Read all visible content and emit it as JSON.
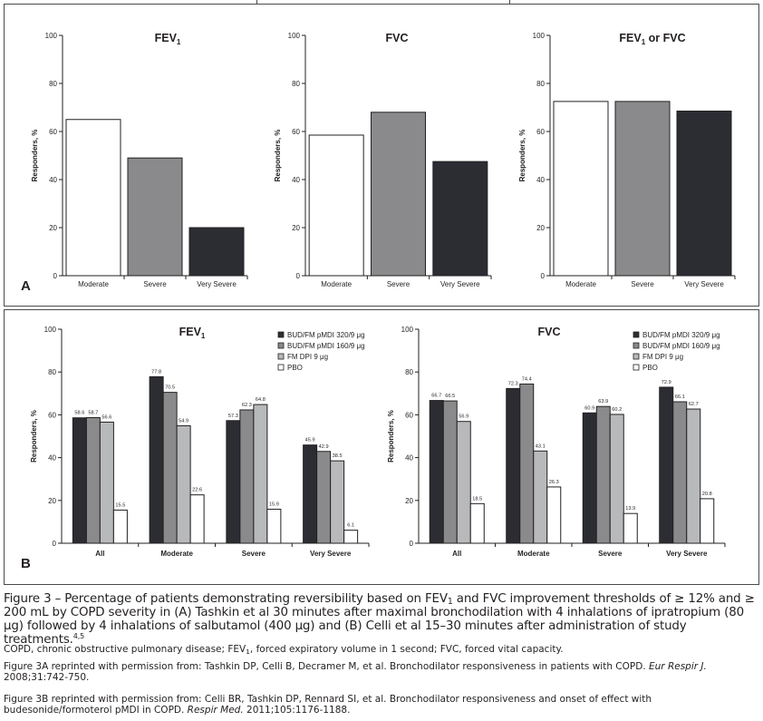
{
  "panels": {
    "a_letter": "A",
    "b_letter": "B"
  },
  "colors": {
    "white": "#ffffff",
    "mid_gray": "#8a8a8c",
    "dark": "#2b2d33",
    "light_gray": "#b8b9bb",
    "axis": "#231f20"
  },
  "chart_data": [
    {
      "type": "bar",
      "panel": "A",
      "title": "FEV",
      "title_sub": "1",
      "title_suffix": "",
      "ylabel": "Responders, %",
      "ylim": [
        0,
        100
      ],
      "yticks": [
        "0",
        "20",
        "40",
        "60",
        "80",
        "100"
      ],
      "categories": [
        "Moderate",
        "Severe",
        "Very Severe"
      ],
      "values": [
        65,
        49,
        20
      ],
      "bar_colors": [
        "#ffffff",
        "#8a8a8c",
        "#2b2d33"
      ]
    },
    {
      "type": "bar",
      "panel": "A",
      "title": "FVC",
      "title_sub": "",
      "title_suffix": "",
      "ylabel": "Responders, %",
      "ylim": [
        0,
        100
      ],
      "yticks": [
        "0",
        "20",
        "40",
        "60",
        "80",
        "100"
      ],
      "categories": [
        "Moderate",
        "Severe",
        "Very Severe"
      ],
      "values": [
        58.5,
        68,
        47.5
      ],
      "bar_colors": [
        "#ffffff",
        "#8a8a8c",
        "#2b2d33"
      ]
    },
    {
      "type": "bar",
      "panel": "A",
      "title": "FEV",
      "title_sub": "1",
      "title_suffix": " or FVC",
      "ylabel": "Responders, %",
      "ylim": [
        0,
        100
      ],
      "yticks": [
        "0",
        "20",
        "40",
        "60",
        "80",
        "100"
      ],
      "categories": [
        "Moderate",
        "Severe",
        "Very Severe"
      ],
      "values": [
        72.5,
        72.5,
        68.5
      ],
      "bar_colors": [
        "#ffffff",
        "#8a8a8c",
        "#2b2d33"
      ]
    },
    {
      "type": "bar",
      "panel": "B",
      "title": "FEV",
      "title_sub": "1",
      "title_suffix": "",
      "ylabel": "Responders, %",
      "ylim": [
        0,
        100
      ],
      "yticks": [
        "0",
        "20",
        "40",
        "60",
        "80",
        "100"
      ],
      "categories": [
        "All",
        "Moderate",
        "Severe",
        "Very Severe"
      ],
      "series": [
        {
          "name": "BUD/FM pMDI 320/9 μg",
          "color": "#2b2d33",
          "values": [
            58.6,
            77.8,
            57.3,
            45.9
          ],
          "labels": [
            "58.6",
            "77.8",
            "57.3",
            "45.9"
          ]
        },
        {
          "name": "BUD/FM pMDI 160/9 μg",
          "color": "#8a8a8c",
          "values": [
            58.7,
            70.5,
            62.3,
            42.9
          ],
          "labels": [
            "58.7",
            "70.5",
            "62.3",
            "42.9"
          ]
        },
        {
          "name": "FM DPI 9 μg",
          "color": "#b8b9bb",
          "values": [
            56.6,
            54.9,
            64.8,
            38.5
          ],
          "labels": [
            "56.6",
            "54.9",
            "64.8",
            "38.5"
          ]
        },
        {
          "name": "PBO",
          "color": "#ffffff",
          "values": [
            15.5,
            22.6,
            15.9,
            6.1
          ],
          "labels": [
            "15.5",
            "22.6",
            "15.9",
            "6.1"
          ]
        }
      ]
    },
    {
      "type": "bar",
      "panel": "B",
      "title": "FVC",
      "title_sub": "",
      "title_suffix": "",
      "ylabel": "Responders, %",
      "ylim": [
        0,
        100
      ],
      "yticks": [
        "0",
        "20",
        "40",
        "60",
        "80",
        "100"
      ],
      "categories": [
        "All",
        "Moderate",
        "Severe",
        "Very Severe"
      ],
      "series": [
        {
          "name": "BUD/FM pMDI 320/9 μg",
          "color": "#2b2d33",
          "values": [
            66.7,
            72.3,
            60.9,
            72.9
          ],
          "labels": [
            "66.7",
            "72.3",
            "60.9",
            "72.9"
          ]
        },
        {
          "name": "BUD/FM pMDI 160/9 μg",
          "color": "#8a8a8c",
          "values": [
            66.5,
            74.4,
            63.9,
            66.1
          ],
          "labels": [
            "66.5",
            "74.4",
            "63.9",
            "66.1"
          ]
        },
        {
          "name": "FM DPI 9 μg",
          "color": "#b8b9bb",
          "values": [
            56.9,
            43.1,
            60.2,
            62.7
          ],
          "labels": [
            "56.9",
            "43.1",
            "60.2",
            "62.7"
          ]
        },
        {
          "name": "PBO",
          "color": "#ffffff",
          "values": [
            18.5,
            26.3,
            13.9,
            20.8
          ],
          "labels": [
            "18.5",
            "26.3",
            "13.9",
            "20.8"
          ]
        }
      ]
    }
  ],
  "caption": {
    "p1": "Figure 3 – Percentage of patients demonstrating reversibility based on FEV",
    "p1_sub": "1",
    "p2": " and FVC improvement thresholds of ≥ 12% and ≥ 200 mL by COPD severity in (A) Tashkin et al 30 minutes after maximal bronchodilation with 4 inhalations of ipratropium (80 μg) followed by 4 inhalations of salbutamol (400 μg) and (B) Celli et al 15–30 minutes after administration of study treatments.",
    "p2_sup": "4,5",
    "abbr1": "COPD, chronic obstructive pulmonary disease; FEV",
    "abbr_sub": "1",
    "abbr2": ", forced expiratory volume in 1 second; FVC, forced vital capacity.",
    "fig3a_text": "Figure 3A reprinted with permission from: Tashkin DP, Celli B, Decramer M, et al. Bronchodilator responsiveness in patients with COPD. ",
    "fig3a_journal": "Eur Respir J.",
    "fig3a_cite": " 2008;31:742-750.",
    "fig3b_text": "Figure 3B reprinted with permission from: Celli BR, Tashkin DP, Rennard SI, et al. Bronchodilator responsiveness and onset of effect with budesonide/formoterol pMDI in COPD. ",
    "fig3b_journal": "Respir Med.",
    "fig3b_cite": " 2011;105:1176-1188."
  }
}
